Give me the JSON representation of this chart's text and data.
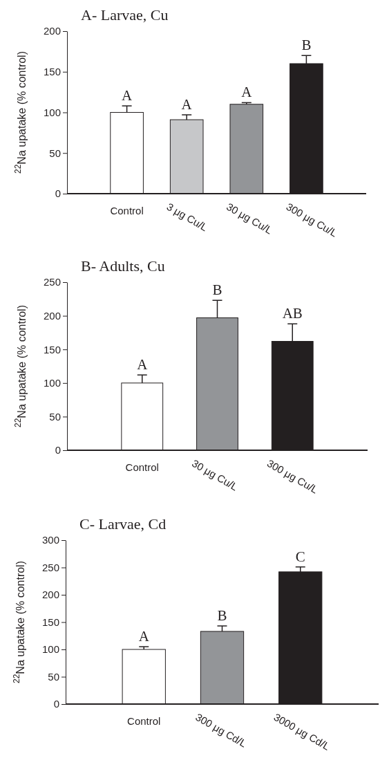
{
  "chart_data": [
    {
      "type": "bar",
      "title": "A- Larvae, Cu",
      "ylabel": "$^{22}$Na upatake (% control)",
      "categories": [
        "Control",
        "3 μg Cu/L",
        "30 μg Cu/L",
        "300 μg Cu/L"
      ],
      "values": [
        100,
        91,
        110,
        160
      ],
      "errors": [
        8,
        6,
        2,
        10
      ],
      "colors": [
        "#ffffff",
        "#c6c7c9",
        "#939598",
        "#231f20"
      ],
      "ylim": [
        0,
        200
      ],
      "yticks": [
        0,
        50,
        100,
        150,
        200
      ],
      "annotations": [
        {
          "text": "A",
          "x": "Control",
          "y": 108
        },
        {
          "text": "A",
          "x": "3 μg Cu/L",
          "y": 97
        },
        {
          "text": "A",
          "x": "30 μg Cu/L",
          "y": 112
        },
        {
          "text": "B",
          "x": "300 μg Cu/L",
          "y": 170
        }
      ]
    },
    {
      "type": "bar",
      "title": "B- Adults, Cu",
      "ylabel": "$^{22}$Na upatake (% control)",
      "categories": [
        "Control",
        "30 μg Cu/L",
        "300 μg Cu/L"
      ],
      "values": [
        100,
        197,
        162
      ],
      "errors": [
        12,
        26,
        26
      ],
      "colors": [
        "#ffffff",
        "#939598",
        "#231f20"
      ],
      "ylim": [
        0,
        250
      ],
      "yticks": [
        0,
        50,
        100,
        150,
        200,
        250
      ],
      "annotations": [
        {
          "text": "A",
          "x": "Control",
          "y": 112
        },
        {
          "text": "B",
          "x": "30 μg Cu/L",
          "y": 223
        },
        {
          "text": "AB",
          "x": "300 μg Cu/L",
          "y": 188
        }
      ]
    },
    {
      "type": "bar",
      "title": "C- Larvae, Cd",
      "ylabel": "$^{22}$Na upatake (% control)",
      "categories": [
        "Control",
        "300 μg Cd/L",
        "3000 μg Cd/L"
      ],
      "values": [
        100,
        133,
        242
      ],
      "errors": [
        5,
        10,
        9
      ],
      "colors": [
        "#ffffff",
        "#939598",
        "#231f20"
      ],
      "ylim": [
        0,
        300
      ],
      "yticks": [
        0,
        50,
        100,
        150,
        200,
        250,
        300
      ],
      "annotations": [
        {
          "text": "A",
          "x": "Control",
          "y": 105
        },
        {
          "text": "B",
          "x": "300 μg Cd/L",
          "y": 143
        },
        {
          "text": "C",
          "x": "3000 μg Cd/L",
          "y": 251
        }
      ]
    }
  ]
}
